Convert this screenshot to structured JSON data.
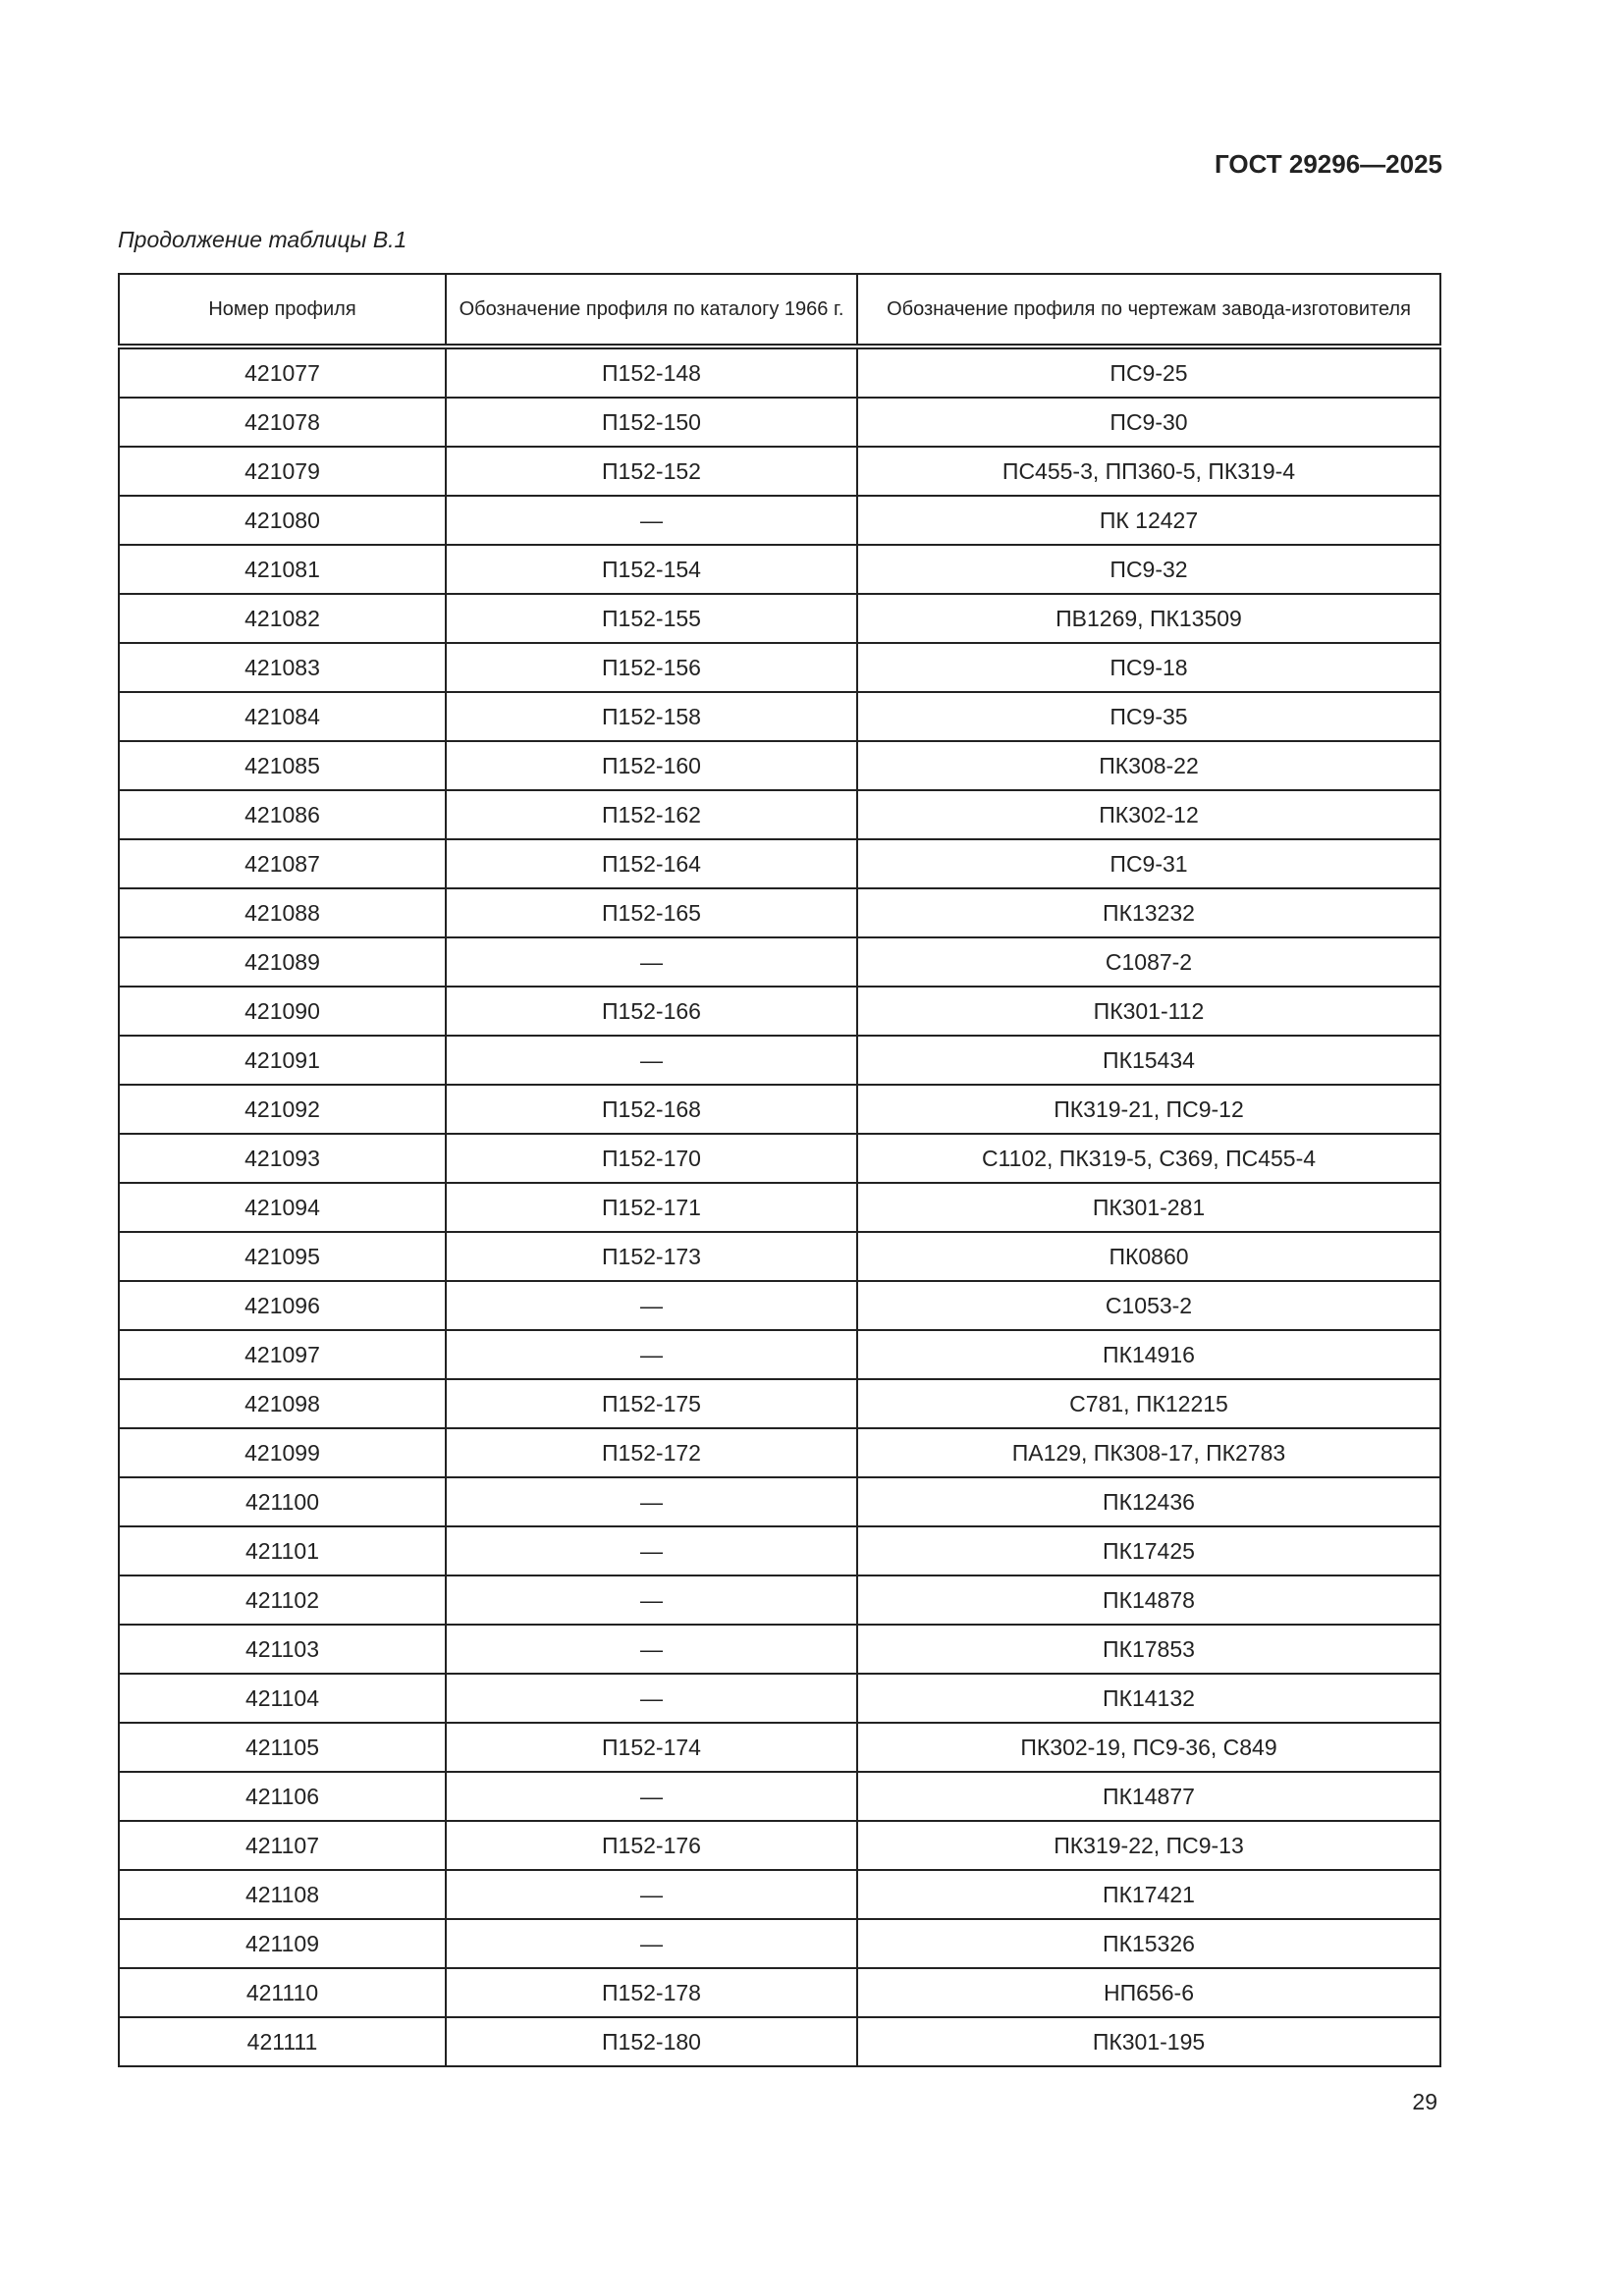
{
  "header": {
    "doc_id": "ГОСТ 29296—2025"
  },
  "caption": "Продолжение таблицы В.1",
  "table": {
    "columns": [
      "Номер профиля",
      "Обозначение профиля по каталогу 1966 г.",
      "Обозначение профиля по чертежам завода-изготовителя"
    ],
    "rows": [
      [
        "421077",
        "П152-148",
        "ПС9-25"
      ],
      [
        "421078",
        "П152-150",
        "ПС9-30"
      ],
      [
        "421079",
        "П152-152",
        "ПС455-3, ПП360-5, ПК319-4"
      ],
      [
        "421080",
        "—",
        "ПК 12427"
      ],
      [
        "421081",
        "П152-154",
        "ПС9-32"
      ],
      [
        "421082",
        "П152-155",
        "ПВ1269, ПК13509"
      ],
      [
        "421083",
        "П152-156",
        "ПС9-18"
      ],
      [
        "421084",
        "П152-158",
        "ПС9-35"
      ],
      [
        "421085",
        "П152-160",
        "ПК308-22"
      ],
      [
        "421086",
        "П152-162",
        "ПК302-12"
      ],
      [
        "421087",
        "П152-164",
        "ПС9-31"
      ],
      [
        "421088",
        "П152-165",
        "ПК13232"
      ],
      [
        "421089",
        "—",
        "С1087-2"
      ],
      [
        "421090",
        "П152-166",
        "ПК301-112"
      ],
      [
        "421091",
        "—",
        "ПК15434"
      ],
      [
        "421092",
        "П152-168",
        "ПК319-21, ПС9-12"
      ],
      [
        "421093",
        "П152-170",
        "С1102, ПК319-5, С369, ПС455-4"
      ],
      [
        "421094",
        "П152-171",
        "ПК301-281"
      ],
      [
        "421095",
        "П152-173",
        "ПК0860"
      ],
      [
        "421096",
        "—",
        "С1053-2"
      ],
      [
        "421097",
        "—",
        "ПК14916"
      ],
      [
        "421098",
        "П152-175",
        "С781, ПК12215"
      ],
      [
        "421099",
        "П152-172",
        "ПА129, ПК308-17, ПК2783"
      ],
      [
        "421100",
        "—",
        "ПК12436"
      ],
      [
        "421101",
        "—",
        "ПК17425"
      ],
      [
        "421102",
        "—",
        "ПК14878"
      ],
      [
        "421103",
        "—",
        "ПК17853"
      ],
      [
        "421104",
        "—",
        "ПК14132"
      ],
      [
        "421105",
        "П152-174",
        "ПК302-19, ПС9-36, С849"
      ],
      [
        "421106",
        "—",
        "ПК14877"
      ],
      [
        "421107",
        "П152-176",
        "ПК319-22, ПС9-13"
      ],
      [
        "421108",
        "—",
        "ПК17421"
      ],
      [
        "421109",
        "—",
        "ПК15326"
      ],
      [
        "421110",
        "П152-178",
        "НП656-6"
      ],
      [
        "421111",
        "П152-180",
        "ПК301-195"
      ]
    ]
  },
  "page_number": "29"
}
